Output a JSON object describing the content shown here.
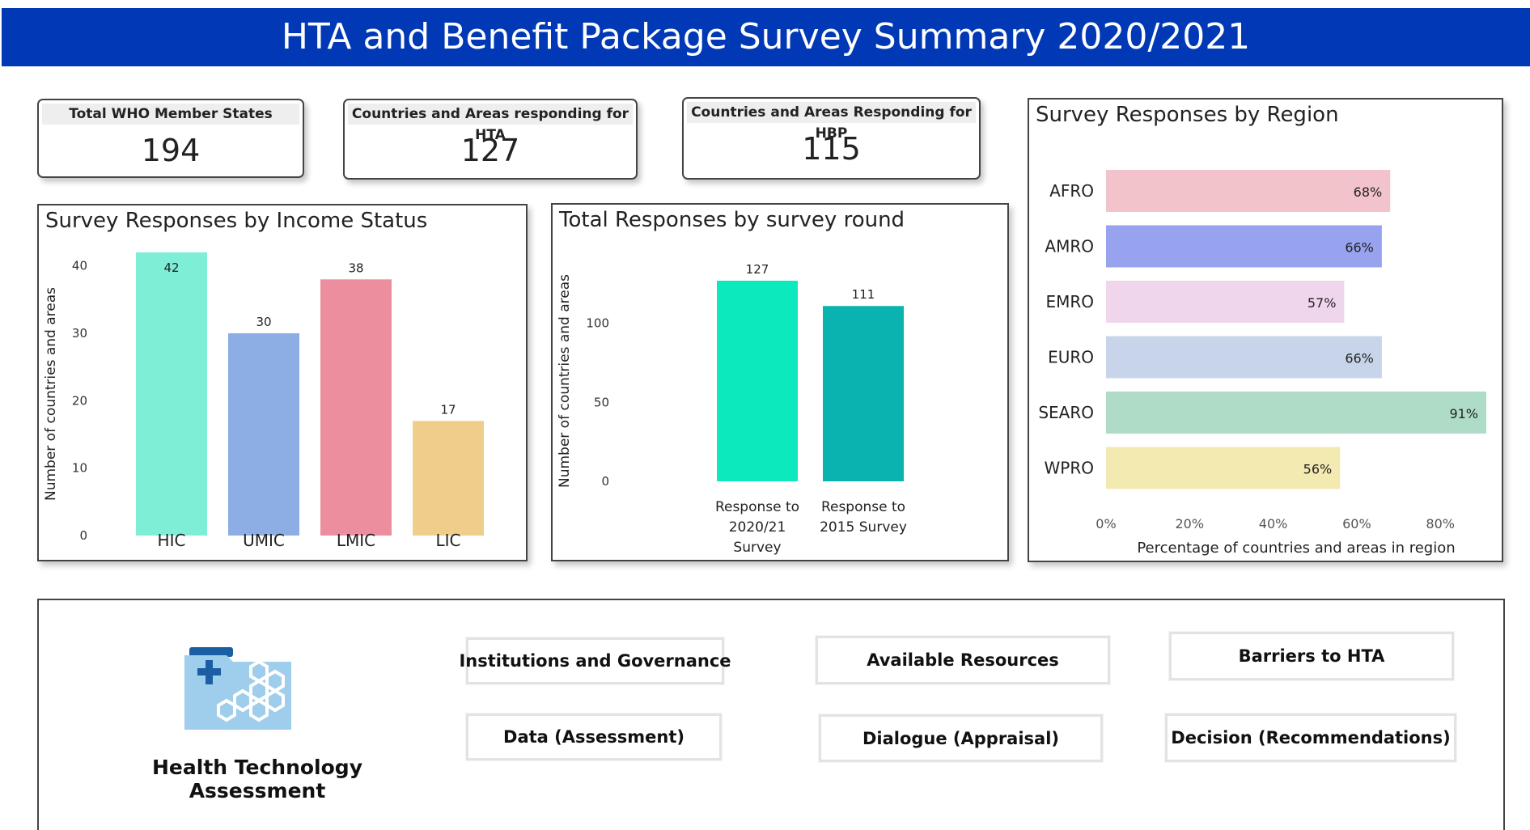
{
  "header": {
    "title": "HTA and Benefit Package Survey Summary 2020/2021"
  },
  "kpis": {
    "who": {
      "label": "Total WHO Member States",
      "value": "194"
    },
    "hta": {
      "label": "Countries and Areas responding for HTA",
      "value": "127"
    },
    "hbp": {
      "label": "Countries and Areas Responding for HBP",
      "value": "115"
    }
  },
  "chart_data": [
    {
      "type": "bar",
      "title": "Survey Responses by Income Status",
      "categories": [
        "HIC",
        "UMIC",
        "LMIC",
        "LIC"
      ],
      "values": [
        42,
        30,
        38,
        17
      ],
      "colors": [
        "#7eeed6",
        "#8caee4",
        "#ec8e9d",
        "#efcd8a"
      ],
      "ylabel": "Number of countries and areas",
      "xlabel": "",
      "ylim": [
        0,
        42
      ],
      "yticks": [
        0,
        10,
        20,
        30,
        40
      ],
      "grid": false
    },
    {
      "type": "bar",
      "title": "Total Responses by survey round",
      "categories": [
        "Response to 2020/21 Survey",
        "Response to 2015 Survey"
      ],
      "category_lines": [
        [
          "Response to",
          "2020/21",
          "Survey"
        ],
        [
          "Response to",
          "2015 Survey"
        ]
      ],
      "values": [
        127,
        111
      ],
      "colors": [
        "#0ce9bd",
        "#0bb3b0"
      ],
      "ylabel": "Number of countries and areas",
      "xlabel": "",
      "ylim": [
        0,
        127
      ],
      "yticks": [
        0,
        50,
        100
      ],
      "grid": false
    },
    {
      "type": "bar",
      "orientation": "horizontal",
      "title": "Survey Responses by Region",
      "categories": [
        "AFRO",
        "AMRO",
        "EMRO",
        "EURO",
        "SEARO",
        "WPRO"
      ],
      "values": [
        68,
        66,
        57,
        66,
        91,
        56
      ],
      "value_labels": [
        "68%",
        "66%",
        "57%",
        "66%",
        "91%",
        "56%"
      ],
      "colors": [
        "#f2c3cb",
        "#97a3ee",
        "#f0d6ec",
        "#c7d4ea",
        "#aedcc6",
        "#f3eab2"
      ],
      "xlabel": "Percentage of countries and areas in region",
      "ylabel": "",
      "xlim": [
        0,
        91
      ],
      "xticks": [
        0,
        20,
        40,
        60,
        80
      ],
      "xtick_labels": [
        "0%",
        "20%",
        "40%",
        "60%",
        "80%"
      ],
      "grid": false
    }
  ],
  "hta": {
    "label": "Health Technology Assessment",
    "icon": "folder-hexagon-icon",
    "tiles": {
      "institutions": "Institutions and Governance",
      "resources": "Available Resources",
      "barriers": "Barriers to HTA",
      "data": "Data (Assessment)",
      "dialogue": "Dialogue (Appraisal)",
      "decision": "Decision (Recommendations)"
    }
  }
}
